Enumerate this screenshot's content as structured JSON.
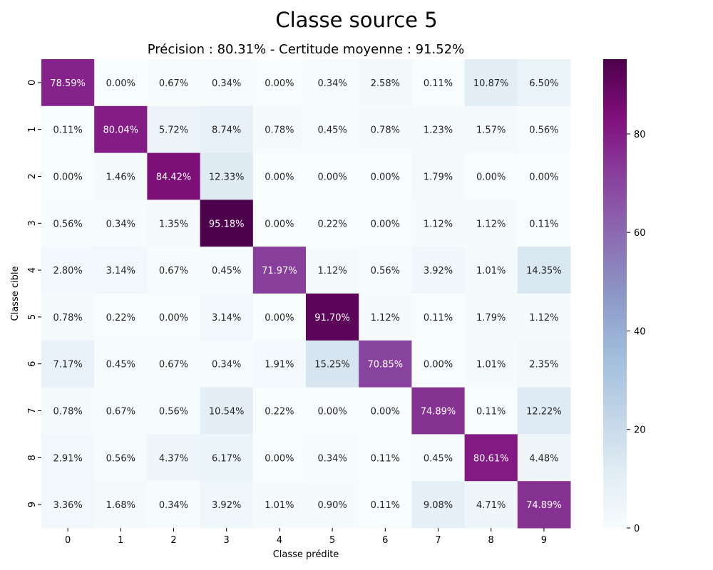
{
  "chart_data": {
    "type": "heatmap",
    "title": "Classe source 5",
    "subtitle": "Précision : 80.31% - Certitude moyenne : 91.52%",
    "xlabel": "Classe prédite",
    "ylabel": "Classe cible",
    "x_categories": [
      "0",
      "1",
      "2",
      "3",
      "4",
      "5",
      "6",
      "7",
      "8",
      "9"
    ],
    "y_categories": [
      "0",
      "1",
      "2",
      "3",
      "4",
      "5",
      "6",
      "7",
      "8",
      "9"
    ],
    "values": [
      [
        78.59,
        0.0,
        0.67,
        0.34,
        0.0,
        0.34,
        2.58,
        0.11,
        10.87,
        6.5
      ],
      [
        0.11,
        80.04,
        5.72,
        8.74,
        0.78,
        0.45,
        0.78,
        1.23,
        1.57,
        0.56
      ],
      [
        0.0,
        1.46,
        84.42,
        12.33,
        0.0,
        0.0,
        0.0,
        1.79,
        0.0,
        0.0
      ],
      [
        0.56,
        0.34,
        1.35,
        95.18,
        0.0,
        0.22,
        0.0,
        1.12,
        1.12,
        0.11
      ],
      [
        2.8,
        3.14,
        0.67,
        0.45,
        71.97,
        1.12,
        0.56,
        3.92,
        1.01,
        14.35
      ],
      [
        0.78,
        0.22,
        0.0,
        3.14,
        0.0,
        91.7,
        1.12,
        0.11,
        1.79,
        1.12
      ],
      [
        7.17,
        0.45,
        0.67,
        0.34,
        1.91,
        15.25,
        70.85,
        0.0,
        1.01,
        2.35
      ],
      [
        0.78,
        0.67,
        0.56,
        10.54,
        0.22,
        0.0,
        0.0,
        74.89,
        0.11,
        12.22
      ],
      [
        2.91,
        0.56,
        4.37,
        6.17,
        0.0,
        0.34,
        0.11,
        0.45,
        80.61,
        4.48
      ],
      [
        3.36,
        1.68,
        0.34,
        3.92,
        1.01,
        0.9,
        0.11,
        9.08,
        4.71,
        74.89
      ]
    ],
    "value_suffix": "%",
    "colormap": "BuPu",
    "colorbar": {
      "range": [
        0,
        95.18
      ],
      "ticks": [
        0,
        20,
        40,
        60,
        80
      ]
    },
    "grid": false
  }
}
